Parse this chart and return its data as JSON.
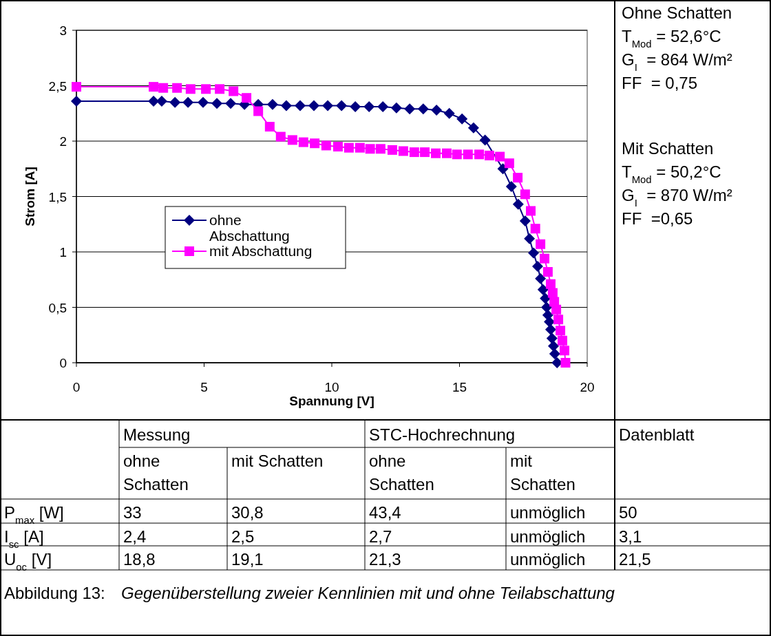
{
  "chart_data": [
    {
      "type": "line",
      "xlabel": "Spannung [V]",
      "ylabel": "Strom [A]",
      "xlim": [
        0,
        20
      ],
      "xticks": [
        0,
        5,
        10,
        15,
        20
      ],
      "ylim": [
        0,
        3
      ],
      "yticks": [
        0,
        {
          "value": 0.5,
          "label": "0,5"
        },
        1,
        {
          "value": 1.5,
          "label": "1,5"
        },
        2,
        {
          "value": 2.5,
          "label": "2,5"
        },
        3
      ],
      "grid": "y",
      "legend": "left",
      "line_style": "solid",
      "annotations": [
        "Ohne Schatten",
        "T$_{Mod}$ = 52,6°C",
        "G$_{I}$  = 864 W/m²",
        "FF  = 0,75",
        "Mit Schatten",
        "T$_{Mod}$ = 50,2°C",
        "G$_{I}$  = 870 W/m²",
        "FF  =0,65"
      ],
      "series": [
        {
          "name": "ohne Abschattung",
          "color": "#000080",
          "marker": "diamond",
          "x": [
            0,
            3.02,
            3.34,
            3.86,
            4.37,
            4.96,
            5.5,
            6.04,
            6.58,
            7.12,
            7.68,
            8.22,
            8.76,
            9.3,
            9.84,
            10.38,
            10.92,
            11.46,
            12.0,
            12.53,
            13.05,
            13.58,
            14.1,
            14.6,
            15.1,
            15.55,
            16.0,
            16.7,
            17.03,
            17.3,
            17.57,
            17.74,
            17.9,
            18.06,
            18.17,
            18.27,
            18.36,
            18.41,
            18.46,
            18.52,
            18.57,
            18.62,
            18.68,
            18.73,
            18.82
          ],
          "values": [
            2.36,
            2.36,
            2.36,
            2.35,
            2.35,
            2.35,
            2.34,
            2.34,
            2.33,
            2.33,
            2.33,
            2.32,
            2.32,
            2.32,
            2.32,
            2.32,
            2.31,
            2.31,
            2.31,
            2.3,
            2.29,
            2.29,
            2.28,
            2.25,
            2.2,
            2.12,
            2.01,
            1.75,
            1.59,
            1.43,
            1.28,
            1.12,
            0.99,
            0.87,
            0.76,
            0.66,
            0.58,
            0.5,
            0.43,
            0.37,
            0.3,
            0.22,
            0.15,
            0.08,
            0
          ]
        },
        {
          "name": "mit Abschattung",
          "color": "#ff00ff",
          "marker": "square",
          "x": [
            0,
            3.02,
            3.4,
            3.94,
            4.47,
            5.07,
            5.61,
            6.15,
            6.66,
            7.12,
            7.57,
            8.0,
            8.46,
            8.89,
            9.33,
            9.78,
            10.24,
            10.67,
            11.1,
            11.5,
            11.91,
            12.37,
            12.8,
            13.23,
            13.64,
            14.07,
            14.5,
            14.9,
            15.33,
            15.77,
            16.17,
            16.58,
            16.95,
            17.28,
            17.57,
            17.79,
            17.97,
            18.17,
            18.33,
            18.46,
            18.57,
            18.65,
            18.71,
            18.79,
            18.87,
            18.95,
            19.03,
            19.11,
            19.15
          ],
          "values": [
            2.49,
            2.49,
            2.48,
            2.48,
            2.47,
            2.47,
            2.47,
            2.45,
            2.39,
            2.27,
            2.13,
            2.04,
            2.01,
            1.99,
            1.98,
            1.96,
            1.95,
            1.94,
            1.94,
            1.93,
            1.93,
            1.92,
            1.91,
            1.9,
            1.9,
            1.89,
            1.89,
            1.88,
            1.88,
            1.88,
            1.87,
            1.86,
            1.8,
            1.67,
            1.52,
            1.37,
            1.21,
            1.07,
            0.94,
            0.82,
            0.71,
            0.63,
            0.55,
            0.48,
            0.39,
            0.29,
            0.2,
            0.11,
            0
          ]
        }
      ]
    },
    {
      "type": "other",
      "annotations": [
        "Messung",
        "STC-Hochrechnung",
        "Datenblatt",
        "ohne Schatten",
        "mit Schatten",
        "ohne Schatten",
        "mit Schatten",
        "P$_{max}$ [W]",
        "33",
        "30,8",
        "43,4",
        "unmöglich",
        "50",
        "I$_{sc}$ [A]",
        "2,4",
        "2,5",
        "2,7",
        "unmöglich",
        "3,1",
        "U$_{oc}$ [V]",
        "18,8",
        "19,1",
        "21,3",
        "unmöglich",
        "21,5",
        "Abbildung 13:",
        "Gegenüberstellung zweier Kennlinien mit und ohne Teilabschattung"
      ]
    }
  ]
}
